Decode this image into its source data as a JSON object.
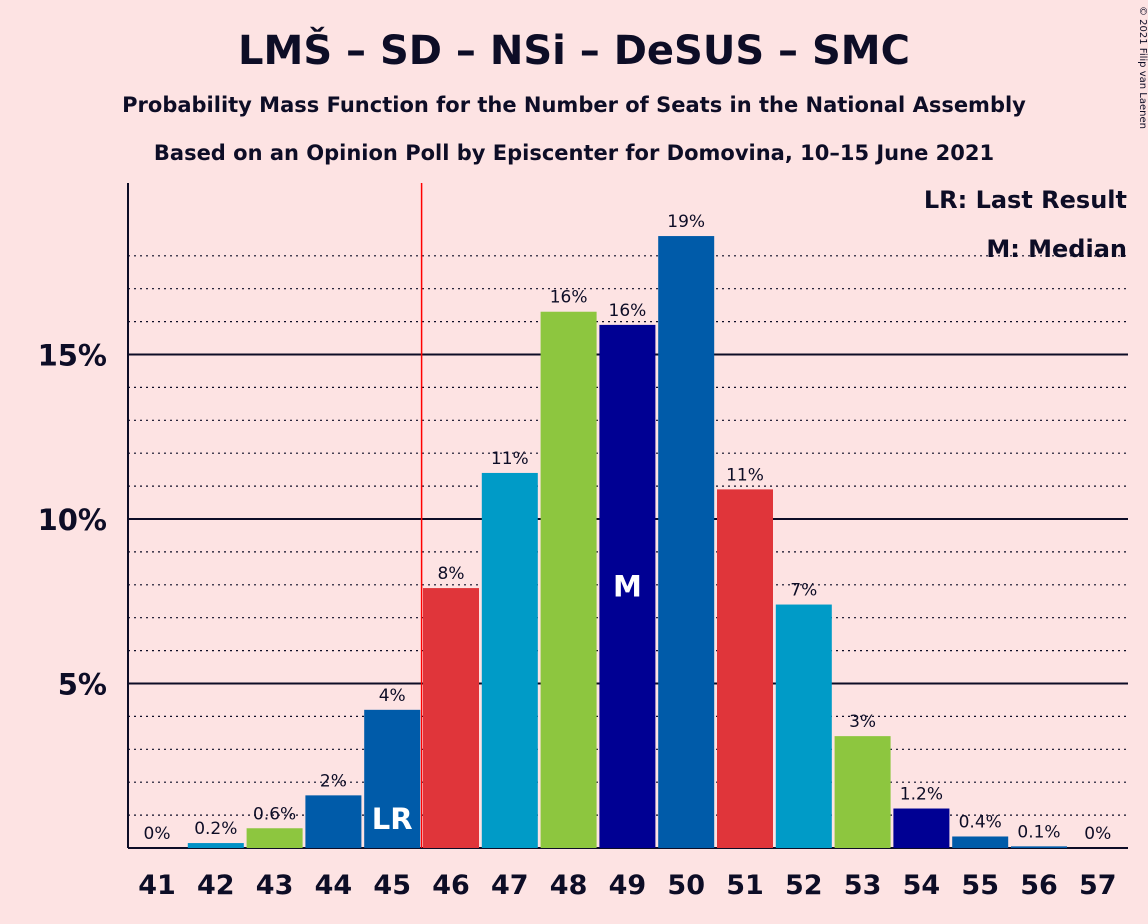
{
  "chart_data": {
    "type": "bar",
    "title": "LMŠ – SD – NSi – DeSUS – SMC",
    "subtitle": "Probability Mass Function for the Number of Seats in the National Assembly",
    "subtitle2": "Based on an Opinion Poll by Episcenter for Domovina, 10–15 June 2021",
    "copyright": "© 2021 Filip van Laenen",
    "legend": {
      "lr": "LR: Last Result",
      "median": "M: Median",
      "placement": "top-right"
    },
    "x": [
      41,
      42,
      43,
      44,
      45,
      46,
      47,
      48,
      49,
      50,
      51,
      52,
      53,
      54,
      55,
      56,
      57
    ],
    "values": [
      0.0,
      0.15,
      0.6,
      1.6,
      4.2,
      7.9,
      11.4,
      16.3,
      15.9,
      18.6,
      10.9,
      7.4,
      3.4,
      1.2,
      0.35,
      0.05,
      0.0
    ],
    "labels": [
      "0%",
      "0.2%",
      "0.6%",
      "2%",
      "4%",
      "8%",
      "11%",
      "16%",
      "16%",
      "19%",
      "11%",
      "7%",
      "3%",
      "1.2%",
      "0.4%",
      "0.1%",
      "0%"
    ],
    "colors": [
      "#0091c6",
      "#0091c6",
      "#8dc63f",
      "#005ba9",
      "#005ba9",
      "#e0353a",
      "#009bc7",
      "#8dc63f",
      "#000093",
      "#005ba9",
      "#e0353a",
      "#009bc7",
      "#8dc63f",
      "#000093",
      "#005ba9",
      "#005ba9",
      "#005ba9"
    ],
    "yticks": [
      5,
      10,
      15
    ],
    "ytick_labels": [
      "5%",
      "10%",
      "15%"
    ],
    "ylim": [
      0,
      20
    ],
    "last_result": {
      "seat": 45,
      "marker": "LR"
    },
    "median": {
      "seat": 49,
      "marker": "M"
    },
    "majority_line_after": 45,
    "majority_line_color": "#ff0000"
  }
}
